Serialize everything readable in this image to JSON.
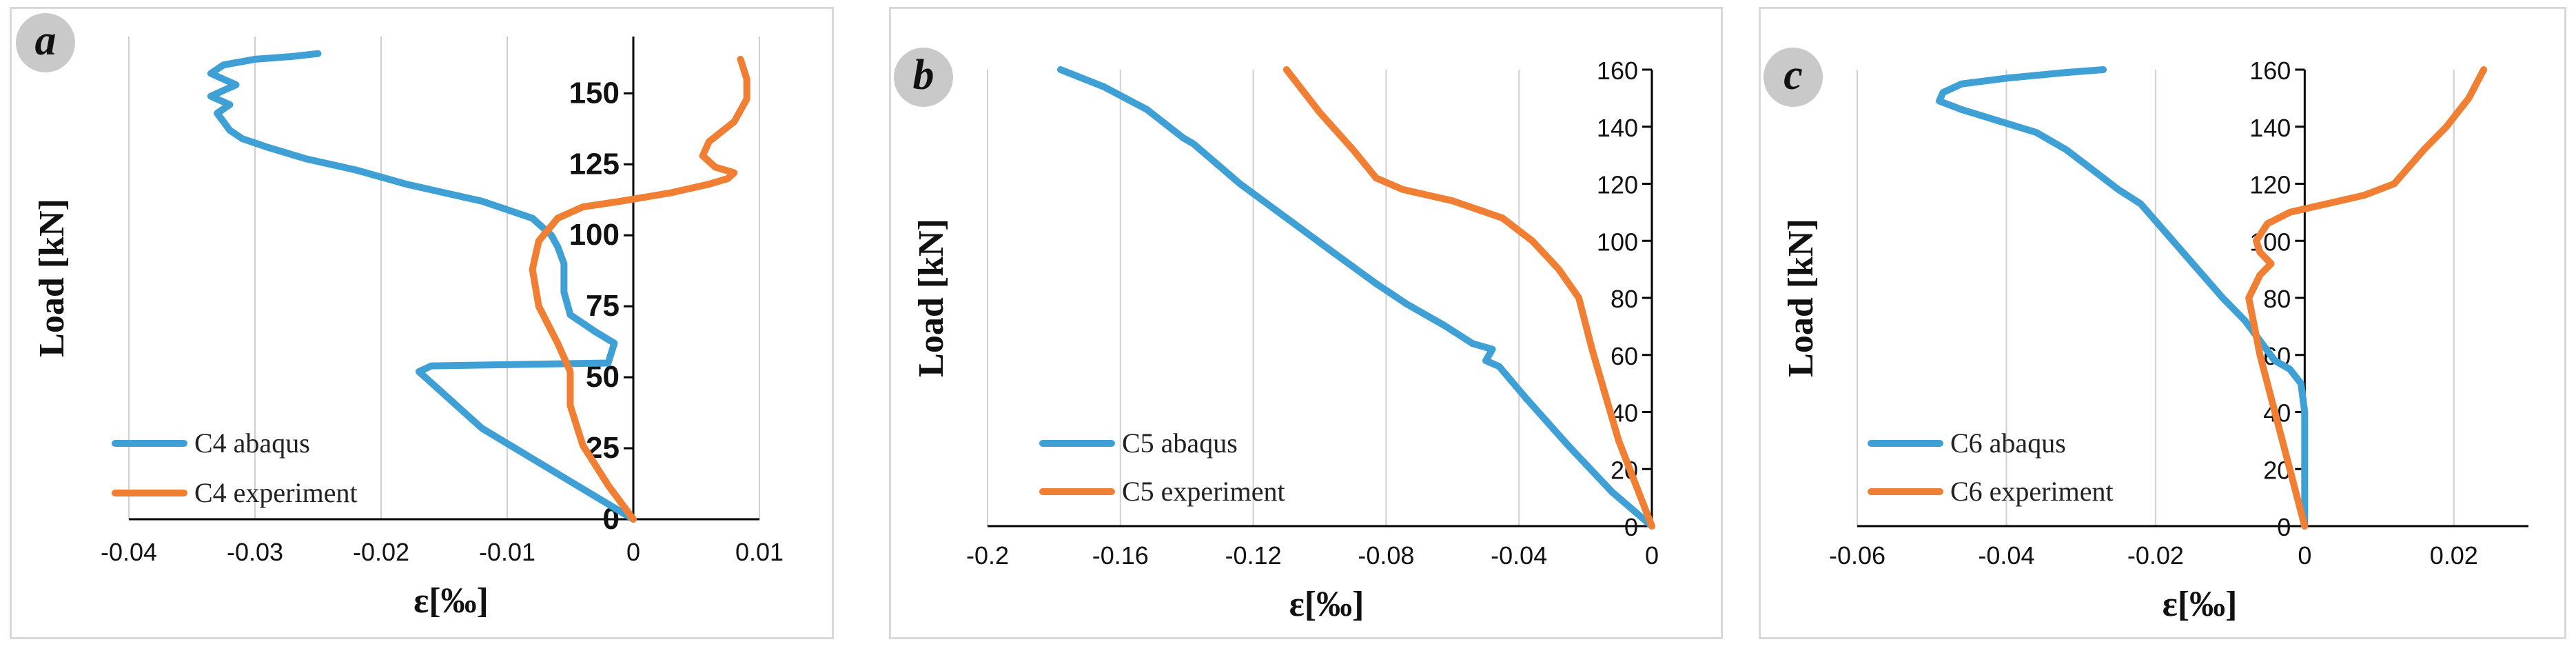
{
  "colors": {
    "abaqus": "#3fa0d6",
    "experiment": "#f07f34",
    "axis": "#000000",
    "grid": "#d0d0d0"
  },
  "chart_data": [
    {
      "panel": "a",
      "type": "line",
      "xlabel": "ε[‰]",
      "ylabel": "Load [kN]",
      "xlim": [
        -0.04,
        0.01
      ],
      "ylim": [
        0,
        170
      ],
      "x_ticks": [
        -0.04,
        -0.03,
        -0.02,
        -0.01,
        0,
        0.01
      ],
      "x_tick_labels": [
        "-0.04",
        "-0.03",
        "-0.02",
        "-0.01",
        "0",
        "0.01"
      ],
      "y_ticks": [
        0,
        25,
        50,
        75,
        100,
        125,
        150
      ],
      "y_tick_labels": [
        "0",
        "25",
        "50",
        "75",
        "100",
        "125",
        "150"
      ],
      "legend": "bottom-left",
      "series": [
        {
          "name": "C4 abaqus",
          "color_key": "abaqus",
          "x": [
            0,
            -0.006,
            -0.012,
            -0.017,
            -0.016,
            -0.002,
            -0.0015,
            -0.003,
            -0.005,
            -0.0055,
            -0.0055,
            -0.006,
            -0.0065,
            -0.008,
            -0.012,
            -0.018,
            -0.022,
            -0.026,
            -0.029,
            -0.031,
            -0.032,
            -0.0325,
            -0.033,
            -0.032,
            -0.0335,
            -0.0325,
            -0.032,
            -0.0315,
            -0.0325,
            -0.0335,
            -0.0325,
            -0.03,
            -0.027,
            -0.025
          ],
          "y": [
            0,
            16,
            32,
            52,
            54,
            55,
            62,
            66,
            72,
            80,
            90,
            96,
            100,
            106,
            112,
            118,
            123,
            127,
            131,
            134,
            137,
            140,
            143,
            146,
            149,
            151,
            152,
            153,
            155,
            157,
            160,
            162,
            163,
            164
          ]
        },
        {
          "name": "C4 experiment",
          "color_key": "experiment",
          "x": [
            0,
            -0.002,
            -0.004,
            -0.005,
            -0.005,
            -0.006,
            -0.0075,
            -0.008,
            -0.0075,
            -0.006,
            -0.004,
            -0.001,
            0.003,
            0.006,
            0.0075,
            0.008,
            0.0065,
            0.0055,
            0.006,
            0.008,
            0.009,
            0.009,
            0.0085
          ],
          "y": [
            0,
            12,
            26,
            40,
            52,
            62,
            75,
            88,
            98,
            106,
            110,
            112,
            115,
            118,
            120,
            122,
            124,
            128,
            133,
            140,
            148,
            155,
            162
          ]
        }
      ]
    },
    {
      "panel": "b",
      "type": "line",
      "xlabel": "ε[‰]",
      "ylabel": "Load [kN]",
      "xlim": [
        -0.2,
        0
      ],
      "ylim": [
        0,
        160
      ],
      "x_ticks": [
        -0.2,
        -0.16,
        -0.12,
        -0.08,
        -0.04,
        0
      ],
      "x_tick_labels": [
        "-0.2",
        "-0.16",
        "-0.12",
        "-0.08",
        "-0.04",
        "0"
      ],
      "y_ticks": [
        0,
        20,
        40,
        60,
        80,
        100,
        120,
        140,
        160
      ],
      "y_tick_labels": [
        "0",
        "20",
        "40",
        "60",
        "80",
        "100",
        "120",
        "140",
        "160"
      ],
      "legend": "bottom-left",
      "series": [
        {
          "name": "C5 abaqus",
          "color_key": "abaqus",
          "x": [
            0,
            -0.012,
            -0.025,
            -0.038,
            -0.046,
            -0.05,
            -0.048,
            -0.054,
            -0.062,
            -0.074,
            -0.083,
            -0.096,
            -0.11,
            -0.124,
            -0.138,
            -0.141,
            -0.152,
            -0.165,
            -0.178
          ],
          "y": [
            0,
            12,
            28,
            45,
            56,
            58,
            62,
            64,
            70,
            78,
            85,
            96,
            108,
            120,
            134,
            136,
            146,
            154,
            160
          ]
        },
        {
          "name": "C5 experiment",
          "color_key": "experiment",
          "x": [
            0,
            -0.005,
            -0.01,
            -0.014,
            -0.018,
            -0.022,
            -0.028,
            -0.036,
            -0.045,
            -0.06,
            -0.075,
            -0.083,
            -0.09,
            -0.1,
            -0.11
          ],
          "y": [
            0,
            15,
            30,
            46,
            62,
            80,
            90,
            100,
            108,
            114,
            118,
            122,
            132,
            145,
            160
          ]
        }
      ]
    },
    {
      "panel": "c",
      "type": "line",
      "xlabel": "ε[‰]",
      "ylabel": "Load [kN]",
      "xlim": [
        -0.06,
        0.03
      ],
      "ylim": [
        0,
        160
      ],
      "x_ticks": [
        -0.06,
        -0.04,
        -0.02,
        0,
        0.02
      ],
      "x_tick_labels": [
        "-0.06",
        "-0.04",
        "-0.02",
        "0",
        "0.02"
      ],
      "y_ticks": [
        0,
        20,
        40,
        60,
        80,
        100,
        120,
        140,
        160
      ],
      "y_tick_labels": [
        "0",
        "20",
        "40",
        "60",
        "80",
        "100",
        "120",
        "140",
        "160"
      ],
      "legend": "bottom-left",
      "series": [
        {
          "name": "C6 abaqus",
          "color_key": "abaqus",
          "x": [
            0,
            0,
            0,
            -0.0005,
            -0.002,
            -0.004,
            -0.006,
            -0.008,
            -0.011,
            -0.015,
            -0.019,
            -0.022,
            -0.025,
            -0.028,
            -0.032,
            -0.036,
            -0.041,
            -0.046,
            -0.049,
            -0.0485,
            -0.046,
            -0.04,
            -0.032,
            -0.027
          ],
          "y": [
            0,
            20,
            40,
            50,
            55,
            58,
            65,
            72,
            80,
            92,
            104,
            113,
            118,
            124,
            132,
            138,
            142,
            146,
            149,
            152,
            155,
            157,
            159,
            160
          ]
        },
        {
          "name": "C6 experiment",
          "color_key": "experiment",
          "x": [
            0,
            -0.002,
            -0.004,
            -0.006,
            -0.0075,
            -0.006,
            -0.0045,
            -0.006,
            -0.0065,
            -0.005,
            -0.002,
            0.003,
            0.008,
            0.012,
            0.014,
            0.016,
            0.019,
            0.022,
            0.024
          ],
          "y": [
            0,
            20,
            40,
            60,
            80,
            88,
            92,
            96,
            100,
            106,
            110,
            113,
            116,
            120,
            126,
            132,
            140,
            150,
            160
          ]
        }
      ]
    }
  ],
  "panels": [
    {
      "label": "a"
    },
    {
      "label": "b"
    },
    {
      "label": "c"
    }
  ]
}
